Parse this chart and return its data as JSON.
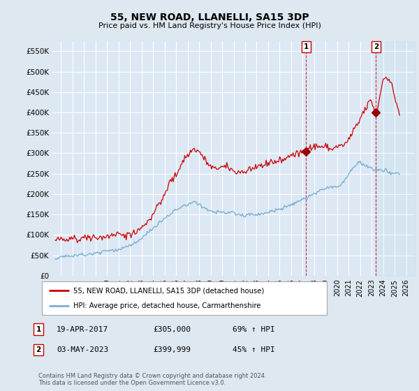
{
  "title": "55, NEW ROAD, LLANELLI, SA15 3DP",
  "subtitle": "Price paid vs. HM Land Registry's House Price Index (HPI)",
  "ylabel_ticks": [
    0,
    50000,
    100000,
    150000,
    200000,
    250000,
    300000,
    350000,
    400000,
    450000,
    500000,
    550000
  ],
  "ylabel_labels": [
    "£0",
    "£50K",
    "£100K",
    "£150K",
    "£200K",
    "£250K",
    "£300K",
    "£350K",
    "£400K",
    "£450K",
    "£500K",
    "£550K"
  ],
  "ylim": [
    0,
    575000
  ],
  "xlim_start": 1995.25,
  "xlim_end": 2026.75,
  "xtick_years": [
    1995,
    1996,
    1997,
    1998,
    1999,
    2000,
    2001,
    2002,
    2003,
    2004,
    2005,
    2006,
    2007,
    2008,
    2009,
    2010,
    2011,
    2012,
    2013,
    2014,
    2015,
    2016,
    2017,
    2018,
    2019,
    2020,
    2021,
    2022,
    2023,
    2024,
    2025,
    2026
  ],
  "background_color": "#dde8f0",
  "plot_bg_color": "#dde8f5",
  "grid_color": "#ffffff",
  "red_line_color": "#cc0000",
  "blue_line_color": "#7ab0d4",
  "marker1_x": 2017.3,
  "marker1_y": 305000,
  "marker2_x": 2023.37,
  "marker2_y": 399999,
  "marker1_label": "1",
  "marker2_label": "2",
  "sale1_date": "19-APR-2017",
  "sale1_price": "£305,000",
  "sale1_hpi": "69% ↑ HPI",
  "sale2_date": "03-MAY-2023",
  "sale2_price": "£399,999",
  "sale2_hpi": "45% ↑ HPI",
  "legend_line1": "55, NEW ROAD, LLANELLI, SA15 3DP (detached house)",
  "legend_line2": "HPI: Average price, detached house, Carmarthenshire",
  "footer": "Contains HM Land Registry data © Crown copyright and database right 2024.\nThis data is licensed under the Open Government Licence v3.0.",
  "hatch_start": 2023.37,
  "hatch_end": 2026.75
}
